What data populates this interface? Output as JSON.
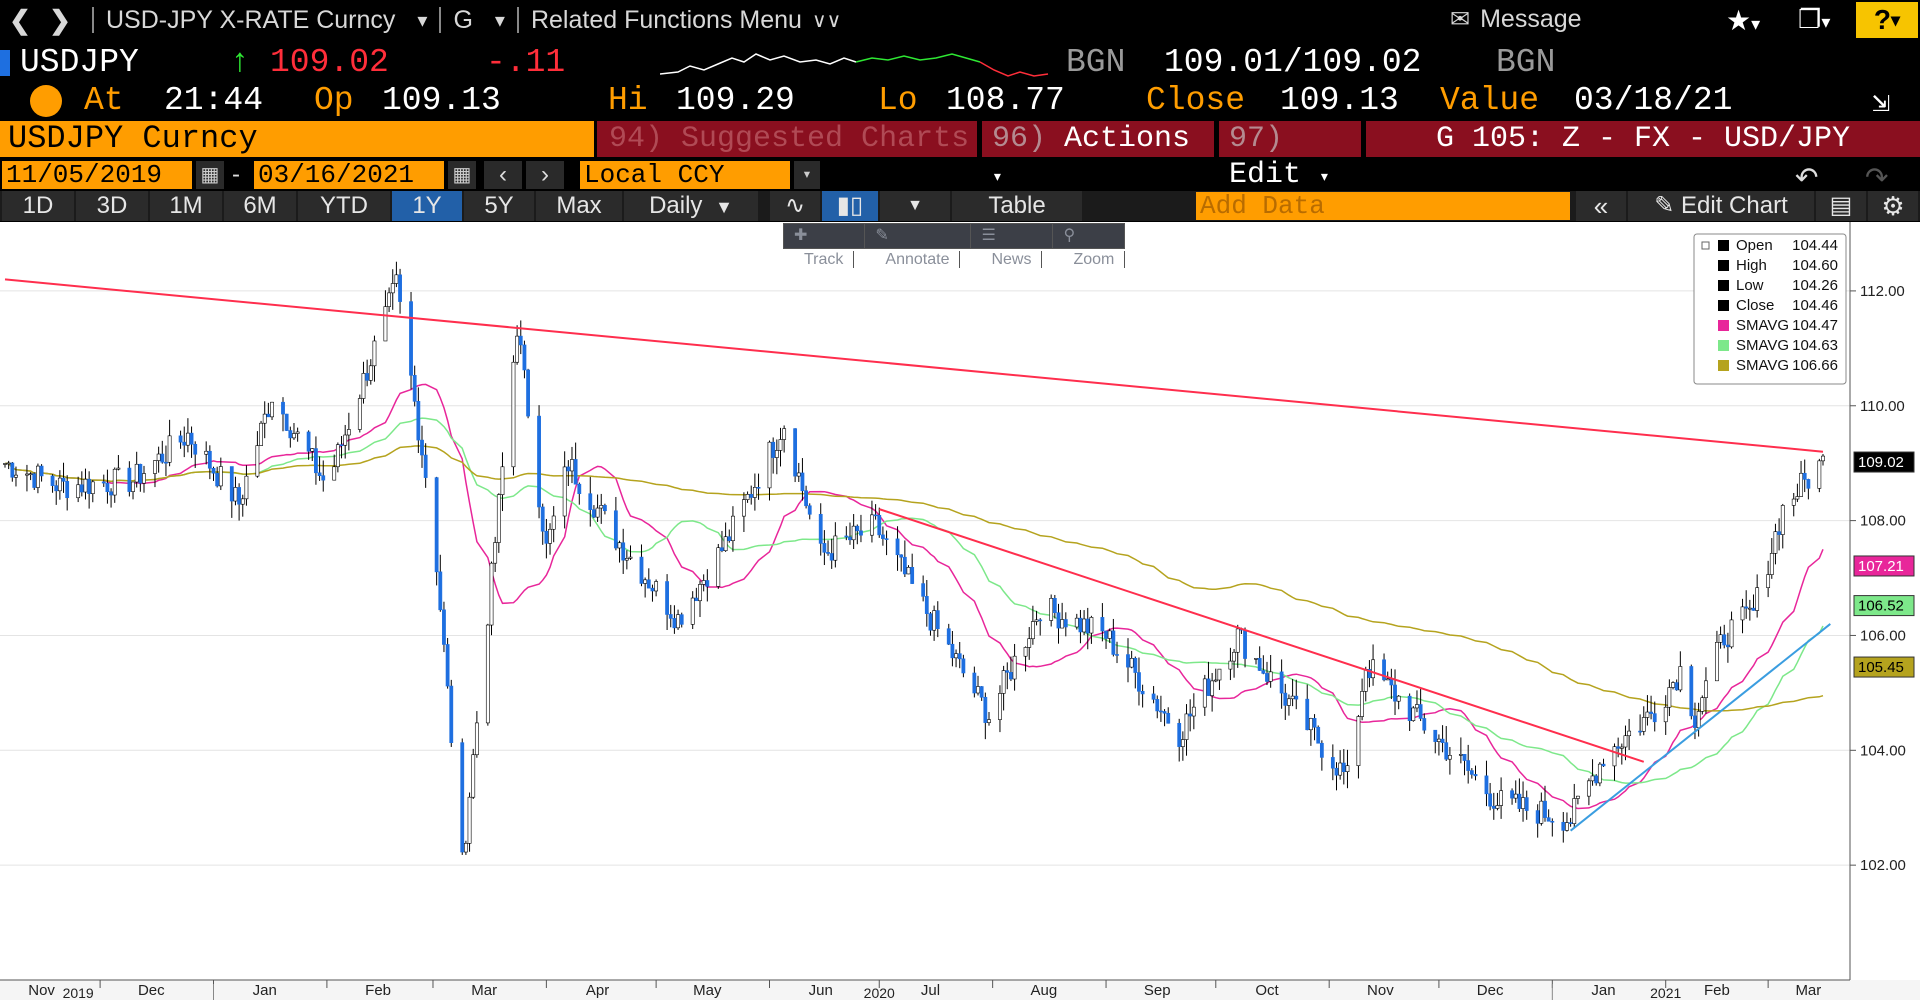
{
  "menubar": {
    "security": "USD-JPY X-RATE Curncy",
    "function": "G",
    "related": "Related Functions Menu",
    "message": "Message",
    "help": "?"
  },
  "quote": {
    "ticker": "USDJPY",
    "last": "109.02",
    "change": "-.11",
    "source": "BGN",
    "bid_ask": "109.01/109.02",
    "source2": "BGN",
    "at_label": "At",
    "time": "21:44",
    "op_label": "Op",
    "open": "109.13",
    "hi_label": "Hi",
    "high": "109.29",
    "lo_label": "Lo",
    "low": "108.77",
    "close_label": "Close",
    "close": "109.13",
    "value_label": "Value",
    "value_date": "03/18/21"
  },
  "header": {
    "title": "USDJPY Curncy",
    "suggested_num": "94)",
    "suggested": "Suggested Charts",
    "actions_num": "96)",
    "actions": "Actions",
    "edit_num": "97)",
    "edit": "Edit",
    "chart_title": "G 105: Z - FX - USD/JPY"
  },
  "daterange": {
    "start": "11/05/2019",
    "end": "03/16/2021",
    "currency": "Local CCY"
  },
  "toolbar": {
    "periods": [
      "1D",
      "3D",
      "1M",
      "6M",
      "YTD",
      "1Y",
      "5Y",
      "Max"
    ],
    "active": "1Y",
    "frequency": "Daily",
    "table": "Table",
    "add_data": "Add Data",
    "edit_chart": "Edit Chart"
  },
  "minitoolbar": [
    "Track",
    "Annotate",
    "News",
    "Zoom"
  ],
  "legend": [
    {
      "label": "Open",
      "value": "104.44",
      "color": "#000000"
    },
    {
      "label": "High",
      "value": "104.60",
      "color": "#000000"
    },
    {
      "label": "Low",
      "value": "104.26",
      "color": "#000000"
    },
    {
      "label": "Close",
      "value": "104.46",
      "color": "#000000"
    },
    {
      "label": "SMAVG",
      "value": "104.47",
      "color": "#e8269a"
    },
    {
      "label": "SMAVG",
      "value": "104.63",
      "color": "#7de88a"
    },
    {
      "label": "SMAVG",
      "value": "106.66",
      "color": "#b5a31e"
    }
  ],
  "chart_data": {
    "type": "line",
    "title": "USDJPY Curncy",
    "ylim": [
      100.0,
      113.2
    ],
    "y_ticks": [
      "102.00",
      "104.00",
      "106.00",
      "108.00",
      "110.00",
      "112.00"
    ],
    "x_months": [
      "Nov",
      "Dec",
      "Jan",
      "Feb",
      "Mar",
      "Apr",
      "May",
      "Jun",
      "Jul",
      "Aug",
      "Sep",
      "Oct",
      "Nov",
      "Dec",
      "Jan",
      "Feb",
      "Mar"
    ],
    "x_years": [
      "2019",
      "2020",
      "2021"
    ],
    "price_path": [
      {
        "date": "2019-11-05",
        "close": 109.0
      },
      {
        "date": "2019-11-20",
        "close": 108.6
      },
      {
        "date": "2019-12-10",
        "close": 108.7
      },
      {
        "date": "2019-12-25",
        "close": 109.5
      },
      {
        "date": "2020-01-08",
        "close": 108.3
      },
      {
        "date": "2020-01-17",
        "close": 110.2
      },
      {
        "date": "2020-02-01",
        "close": 108.6
      },
      {
        "date": "2020-02-20",
        "close": 112.1
      },
      {
        "date": "2020-03-01",
        "close": 108.0
      },
      {
        "date": "2020-03-09",
        "close": 102.0
      },
      {
        "date": "2020-03-24",
        "close": 111.4
      },
      {
        "date": "2020-04-01",
        "close": 107.5
      },
      {
        "date": "2020-04-07",
        "close": 109.0
      },
      {
        "date": "2020-04-20",
        "close": 107.7
      },
      {
        "date": "2020-05-07",
        "close": 106.3
      },
      {
        "date": "2020-05-20",
        "close": 107.6
      },
      {
        "date": "2020-06-05",
        "close": 109.7
      },
      {
        "date": "2020-06-15",
        "close": 107.4
      },
      {
        "date": "2020-06-30",
        "close": 107.9
      },
      {
        "date": "2020-07-31",
        "close": 104.6
      },
      {
        "date": "2020-08-14",
        "close": 106.5
      },
      {
        "date": "2020-09-01",
        "close": 106.0
      },
      {
        "date": "2020-09-21",
        "close": 104.3
      },
      {
        "date": "2020-10-07",
        "close": 106.0
      },
      {
        "date": "2020-11-06",
        "close": 103.5
      },
      {
        "date": "2020-11-11",
        "close": 105.5
      },
      {
        "date": "2020-12-17",
        "close": 103.1
      },
      {
        "date": "2021-01-06",
        "close": 102.8
      },
      {
        "date": "2021-01-15",
        "close": 103.9
      },
      {
        "date": "2021-01-29",
        "close": 104.7
      },
      {
        "date": "2021-02-05",
        "close": 105.4
      },
      {
        "date": "2021-02-09",
        "close": 104.6
      },
      {
        "date": "2021-02-17",
        "close": 106.0
      },
      {
        "date": "2021-02-25",
        "close": 106.4
      },
      {
        "date": "2021-03-05",
        "close": 108.2
      },
      {
        "date": "2021-03-10",
        "close": 108.6
      },
      {
        "date": "2021-03-16",
        "close": 109.02
      }
    ],
    "trendlines": [
      {
        "color": "#ff2e4d",
        "points": [
          {
            "date": "2019-11-05",
            "value": 112.2
          },
          {
            "date": "2021-03-16",
            "value": 109.2
          }
        ]
      },
      {
        "color": "#ff2e4d",
        "points": [
          {
            "date": "2020-07-01",
            "value": 108.2
          },
          {
            "date": "2021-01-26",
            "value": 103.8
          }
        ]
      },
      {
        "color": "#3a9de0",
        "points": [
          {
            "date": "2021-01-06",
            "value": 102.6
          },
          {
            "date": "2021-03-18",
            "value": 106.2
          }
        ]
      }
    ],
    "axis_labels": [
      {
        "value": "109.02",
        "bg": "#000000",
        "fg": "#ffffff"
      },
      {
        "value": "107.21",
        "bg": "#e8269a",
        "fg": "#ffffff"
      },
      {
        "value": "106.52",
        "bg": "#7de88a",
        "fg": "#000000"
      },
      {
        "value": "105.45",
        "bg": "#b5a31e",
        "fg": "#000000"
      }
    ]
  }
}
